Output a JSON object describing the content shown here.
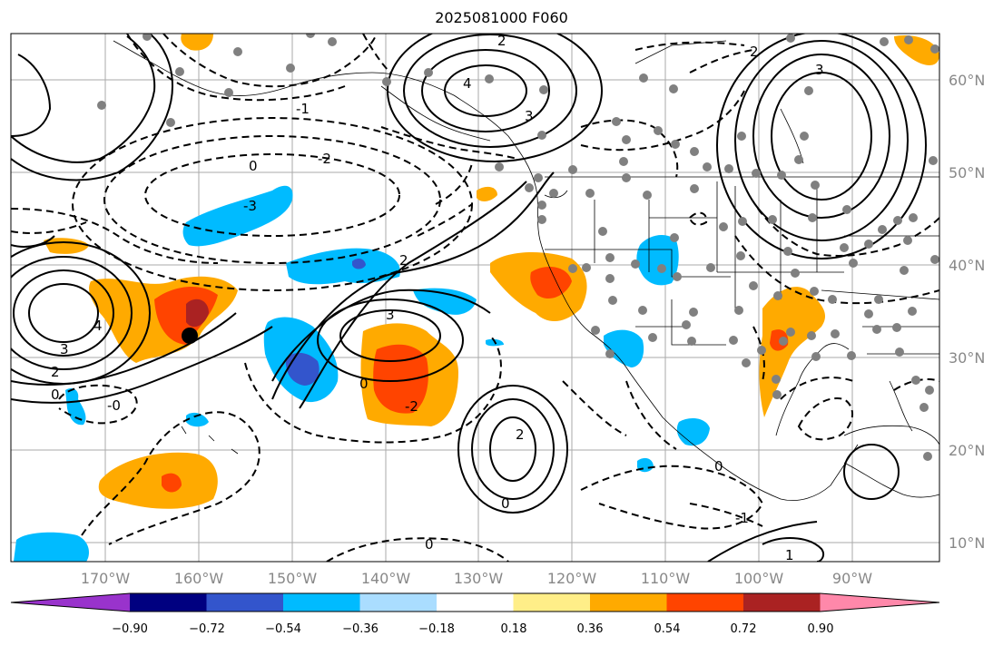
{
  "title": "2025081000 F060",
  "latitudes": [
    "60°N",
    "50°N",
    "40°N",
    "30°N",
    "20°N",
    "10°N"
  ],
  "longitudes": [
    "170°W",
    "160°W",
    "150°W",
    "140°W",
    "130°W",
    "120°W",
    "110°W",
    "100°W",
    "90°W"
  ],
  "colorbar": {
    "colors": [
      "#9933cc",
      "#000080",
      "#3355cc",
      "#00bbff",
      "#aaddff",
      "#ffffff",
      "#ffee88",
      "#ffaa00",
      "#ff4400",
      "#aa2222",
      "#ff88aa"
    ],
    "tick_labels": [
      "−0.90",
      "−0.72",
      "−0.54",
      "−0.36",
      "−0.18",
      "0.18",
      "0.36",
      "0.54",
      "0.72",
      "0.90"
    ]
  },
  "contour_labels": {
    "high_left": "4",
    "high_left_2": "3",
    "high_left_3": "2",
    "high_left_4": "0",
    "high_central": "3",
    "central_2": "2",
    "central_0": "0",
    "central_neg": "-2",
    "north_high": "4",
    "north_3": "3",
    "north_2": "2",
    "east_high": "3",
    "east_2": "2",
    "south_2": "2",
    "south_0": "0",
    "low_3": "-3",
    "low_2": "-2",
    "low_1": "-1",
    "low_0": "0",
    "sw_neg": "-0",
    "bottom_0": "0",
    "se_1": "1",
    "se_neg1": "-1",
    "mid_0": "0"
  }
}
